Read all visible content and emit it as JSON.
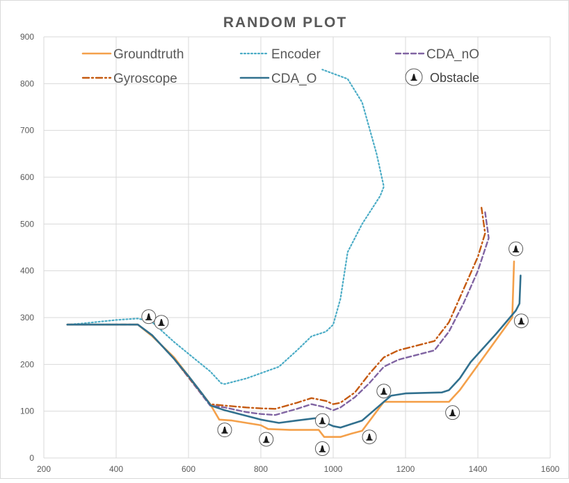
{
  "chart_data": {
    "type": "scatter",
    "title": "RANDOM PLOT",
    "xlim": [
      200,
      1600
    ],
    "ylim": [
      0,
      900
    ],
    "xticks": [
      200,
      400,
      600,
      800,
      1000,
      1200,
      1400,
      1600
    ],
    "yticks": [
      0,
      100,
      200,
      300,
      400,
      500,
      600,
      700,
      800,
      900
    ],
    "grid": "vertical and horizontal",
    "legend_position": "top",
    "series": [
      {
        "name": "Groundtruth",
        "color": "#f4a04a",
        "style": "solid",
        "points": [
          [
            265,
            285
          ],
          [
            460,
            285
          ],
          [
            500,
            260
          ],
          [
            560,
            215
          ],
          [
            660,
            115
          ],
          [
            685,
            82
          ],
          [
            720,
            80
          ],
          [
            760,
            75
          ],
          [
            800,
            70
          ],
          [
            820,
            62
          ],
          [
            880,
            60
          ],
          [
            960,
            60
          ],
          [
            975,
            45
          ],
          [
            1020,
            45
          ],
          [
            1050,
            52
          ],
          [
            1080,
            58
          ],
          [
            1140,
            120
          ],
          [
            1320,
            120
          ],
          [
            1350,
            145
          ],
          [
            1495,
            300
          ],
          [
            1500,
            420
          ]
        ]
      },
      {
        "name": "Encoder",
        "color": "#4bacc6",
        "style": "dotted",
        "points": [
          [
            265,
            285
          ],
          [
            300,
            287
          ],
          [
            400,
            295
          ],
          [
            460,
            298
          ],
          [
            500,
            290
          ],
          [
            560,
            248
          ],
          [
            620,
            210
          ],
          [
            660,
            185
          ],
          [
            690,
            160
          ],
          [
            700,
            158
          ],
          [
            760,
            170
          ],
          [
            850,
            195
          ],
          [
            900,
            230
          ],
          [
            940,
            260
          ],
          [
            980,
            270
          ],
          [
            1000,
            285
          ],
          [
            1020,
            340
          ],
          [
            1040,
            440
          ],
          [
            1080,
            500
          ],
          [
            1130,
            560
          ],
          [
            1140,
            580
          ],
          [
            1120,
            650
          ],
          [
            1080,
            760
          ],
          [
            1040,
            810
          ],
          [
            970,
            830
          ]
        ]
      },
      {
        "name": "CDA_nO",
        "color": "#8064a2",
        "style": "dashed",
        "points": [
          [
            265,
            285
          ],
          [
            460,
            285
          ],
          [
            500,
            262
          ],
          [
            560,
            212
          ],
          [
            660,
            112
          ],
          [
            700,
            108
          ],
          [
            760,
            98
          ],
          [
            800,
            94
          ],
          [
            840,
            92
          ],
          [
            900,
            105
          ],
          [
            940,
            115
          ],
          [
            980,
            108
          ],
          [
            1000,
            102
          ],
          [
            1020,
            108
          ],
          [
            1060,
            130
          ],
          [
            1100,
            160
          ],
          [
            1140,
            195
          ],
          [
            1180,
            210
          ],
          [
            1280,
            230
          ],
          [
            1320,
            270
          ],
          [
            1360,
            330
          ],
          [
            1400,
            400
          ],
          [
            1430,
            470
          ],
          [
            1420,
            525
          ]
        ]
      },
      {
        "name": "Gyroscope",
        "color": "#c55a11",
        "style": "dashdot",
        "points": [
          [
            265,
            285
          ],
          [
            460,
            285
          ],
          [
            500,
            262
          ],
          [
            560,
            212
          ],
          [
            660,
            115
          ],
          [
            700,
            112
          ],
          [
            760,
            108
          ],
          [
            800,
            106
          ],
          [
            840,
            105
          ],
          [
            900,
            118
          ],
          [
            940,
            128
          ],
          [
            980,
            122
          ],
          [
            1000,
            115
          ],
          [
            1020,
            118
          ],
          [
            1060,
            140
          ],
          [
            1100,
            180
          ],
          [
            1140,
            215
          ],
          [
            1180,
            230
          ],
          [
            1280,
            250
          ],
          [
            1320,
            290
          ],
          [
            1360,
            360
          ],
          [
            1400,
            430
          ],
          [
            1420,
            480
          ],
          [
            1410,
            535
          ]
        ]
      },
      {
        "name": "CDA_O",
        "color": "#31708e",
        "style": "solid",
        "points": [
          [
            265,
            285
          ],
          [
            460,
            285
          ],
          [
            500,
            262
          ],
          [
            560,
            212
          ],
          [
            600,
            175
          ],
          [
            640,
            135
          ],
          [
            662,
            112
          ],
          [
            700,
            102
          ],
          [
            760,
            90
          ],
          [
            800,
            82
          ],
          [
            850,
            75
          ],
          [
            900,
            80
          ],
          [
            950,
            85
          ],
          [
            1000,
            68
          ],
          [
            1020,
            65
          ],
          [
            1040,
            70
          ],
          [
            1080,
            80
          ],
          [
            1110,
            100
          ],
          [
            1140,
            120
          ],
          [
            1160,
            133
          ],
          [
            1200,
            138
          ],
          [
            1300,
            140
          ],
          [
            1320,
            145
          ],
          [
            1350,
            170
          ],
          [
            1380,
            205
          ],
          [
            1450,
            265
          ],
          [
            1505,
            315
          ],
          [
            1515,
            330
          ],
          [
            1518,
            390
          ]
        ]
      }
    ],
    "obstacles": {
      "name": "Obstacle",
      "points": [
        [
          490,
          302
        ],
        [
          525,
          290
        ],
        [
          700,
          60
        ],
        [
          815,
          40
        ],
        [
          970,
          80
        ],
        [
          970,
          20
        ],
        [
          1100,
          45
        ],
        [
          1140,
          143
        ],
        [
          1330,
          97
        ],
        [
          1505,
          447
        ],
        [
          1520,
          293
        ]
      ]
    }
  }
}
